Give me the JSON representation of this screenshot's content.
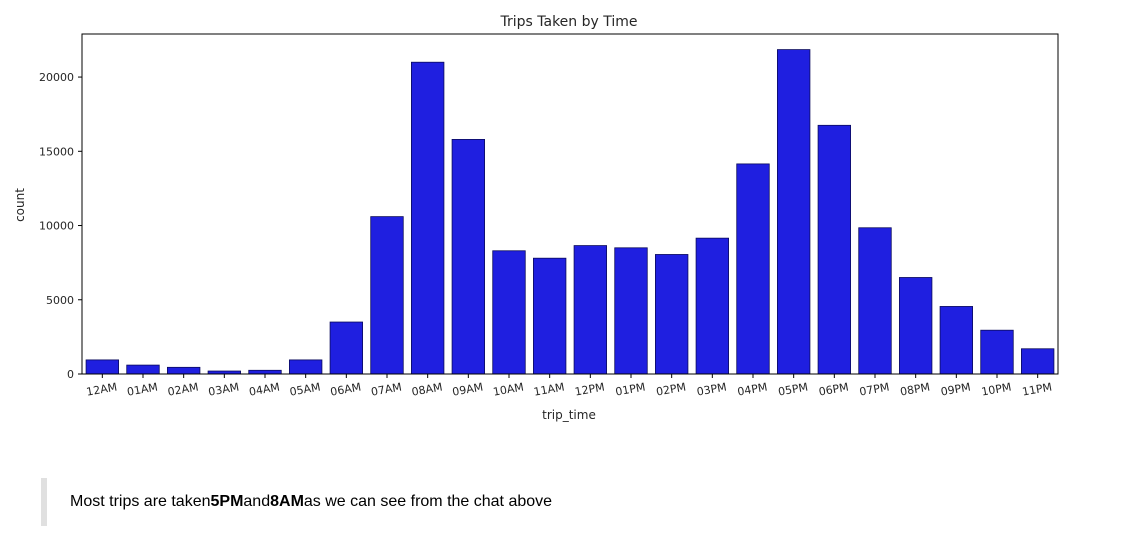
{
  "chart_data": {
    "type": "bar",
    "title": "Trips Taken by Time",
    "xlabel": "trip_time",
    "ylabel": "count",
    "categories": [
      "12AM",
      "01AM",
      "02AM",
      "03AM",
      "04AM",
      "05AM",
      "06AM",
      "07AM",
      "08AM",
      "09AM",
      "10AM",
      "11AM",
      "12PM",
      "01PM",
      "02PM",
      "03PM",
      "04PM",
      "05PM",
      "06PM",
      "07PM",
      "08PM",
      "09PM",
      "10PM",
      "11PM"
    ],
    "values": [
      950,
      600,
      450,
      200,
      250,
      950,
      3500,
      10600,
      21000,
      15800,
      8300,
      7800,
      8650,
      8500,
      8050,
      9150,
      14150,
      21850,
      16750,
      9850,
      6500,
      4550,
      2950,
      1700
    ],
    "yticks": [
      0,
      5000,
      10000,
      15000,
      20000
    ],
    "ylim": [
      0,
      22900
    ],
    "bar_color": "#1f1fe0",
    "bar_edge_color": "#0a0a5c",
    "grid": false
  },
  "note": {
    "prefix": "Most trips are taken ",
    "highlight1": "5PM",
    "middle": " and ",
    "highlight2": "8AM",
    "suffix": " as we can see from the chat above"
  }
}
